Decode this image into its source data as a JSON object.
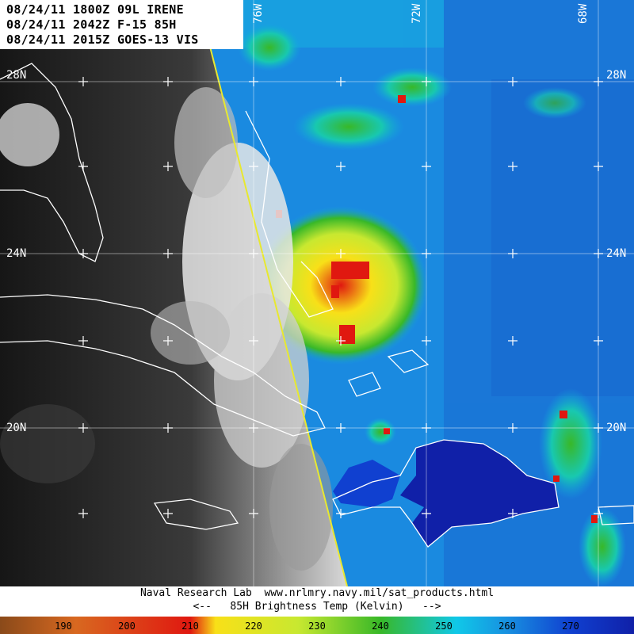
{
  "header": {
    "line1": "08/24/11 1800Z 09L IRENE",
    "line2": "08/24/11 2042Z F-15 85H",
    "line3": "08/24/11 2015Z GOES-13 VIS"
  },
  "map": {
    "lat_labels_left": [
      "28N",
      "24N",
      "20N"
    ],
    "lat_labels_right": [
      "28N",
      "24N",
      "20N"
    ],
    "lon_labels": [
      "76W",
      "72W",
      "68W"
    ]
  },
  "footer": {
    "credit": "Naval Research Lab  www.nrlmry.navy.mil/sat_products.html",
    "scale_title": "<--   85H Brightness Temp (Kelvin)   -->"
  },
  "colorbar": {
    "tick_labels": [
      "190",
      "200",
      "210",
      "220",
      "230",
      "240",
      "250",
      "260",
      "270"
    ],
    "colors": {
      "brown": "#8a4a1a",
      "orange": "#d86820",
      "red": "#e01810",
      "yellow": "#f8e018",
      "yellow_green": "#c8e830",
      "green": "#38b828",
      "cyan": "#10c8e8",
      "sky": "#1890e0",
      "blue": "#1040d0",
      "navy": "#1020a8"
    }
  }
}
